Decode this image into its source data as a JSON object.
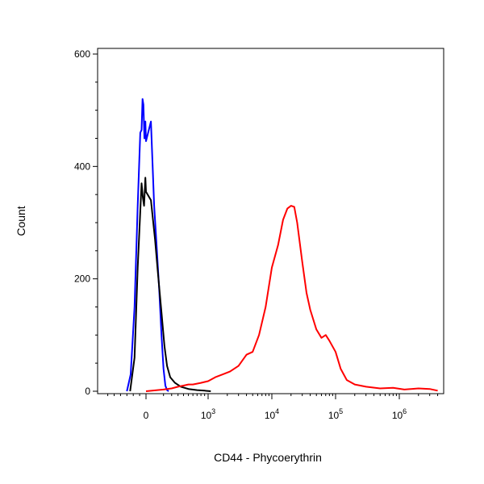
{
  "chart_data": {
    "type": "line",
    "xlabel": "CD44 - Phycoerythrin",
    "ylabel": "Count",
    "ylim": [
      0,
      600
    ],
    "y_ticks": [
      {
        "value": 0,
        "label": "0"
      },
      {
        "value": 200,
        "label": "200"
      },
      {
        "value": 400,
        "label": "400"
      },
      {
        "value": 600,
        "label": "600"
      }
    ],
    "x_scale": "biexponential",
    "x_ticks": [
      {
        "value": 0,
        "base": "0",
        "exp": ""
      },
      {
        "value": 1000,
        "base": "10",
        "exp": "3"
      },
      {
        "value": 10000,
        "base": "10",
        "exp": "4"
      },
      {
        "value": 100000,
        "base": "10",
        "exp": "5"
      },
      {
        "value": 1000000,
        "base": "10",
        "exp": "6"
      }
    ],
    "grid": false,
    "legend": "none",
    "series": [
      {
        "color": "#0000ff",
        "x": [
          -300,
          -240,
          -180,
          -130,
          -90,
          -70,
          -55,
          -40,
          -25,
          -10,
          0,
          10,
          25,
          40,
          60,
          80,
          100,
          120,
          140,
          160
        ],
        "y": [
          0,
          30,
          150,
          330,
          460,
          465,
          520,
          510,
          450,
          480,
          445,
          480,
          330,
          260,
          180,
          100,
          40,
          10,
          2,
          0
        ]
      },
      {
        "color": "#000000",
        "x": [
          -250,
          -180,
          -130,
          -90,
          -70,
          -50,
          -30,
          -10,
          0,
          10,
          30,
          50,
          80,
          110,
          140,
          180,
          250,
          350,
          500,
          700,
          900,
          1100
        ],
        "y": [
          0,
          60,
          220,
          320,
          370,
          345,
          330,
          380,
          355,
          340,
          270,
          210,
          140,
          80,
          45,
          25,
          15,
          8,
          4,
          2,
          1,
          0
        ]
      },
      {
        "color": "#ff0000",
        "x": [
          0,
          100,
          200,
          300,
          400,
          500,
          600,
          800,
          1000,
          1300,
          1700,
          2200,
          3000,
          4000,
          5000,
          6300,
          8000,
          10000,
          12500,
          15000,
          17500,
          20000,
          22500,
          25000,
          30000,
          35000,
          40000,
          50000,
          60000,
          70000,
          80000,
          100000,
          120000,
          150000,
          200000,
          300000,
          500000,
          800000,
          1200000,
          2000000,
          3000000,
          4000000
        ],
        "y": [
          0,
          3,
          5,
          8,
          10,
          12,
          12,
          15,
          18,
          25,
          30,
          35,
          45,
          65,
          70,
          100,
          150,
          220,
          260,
          305,
          325,
          330,
          328,
          300,
          230,
          175,
          145,
          110,
          95,
          100,
          90,
          70,
          40,
          20,
          12,
          8,
          5,
          6,
          3,
          5,
          4,
          1
        ]
      }
    ]
  }
}
